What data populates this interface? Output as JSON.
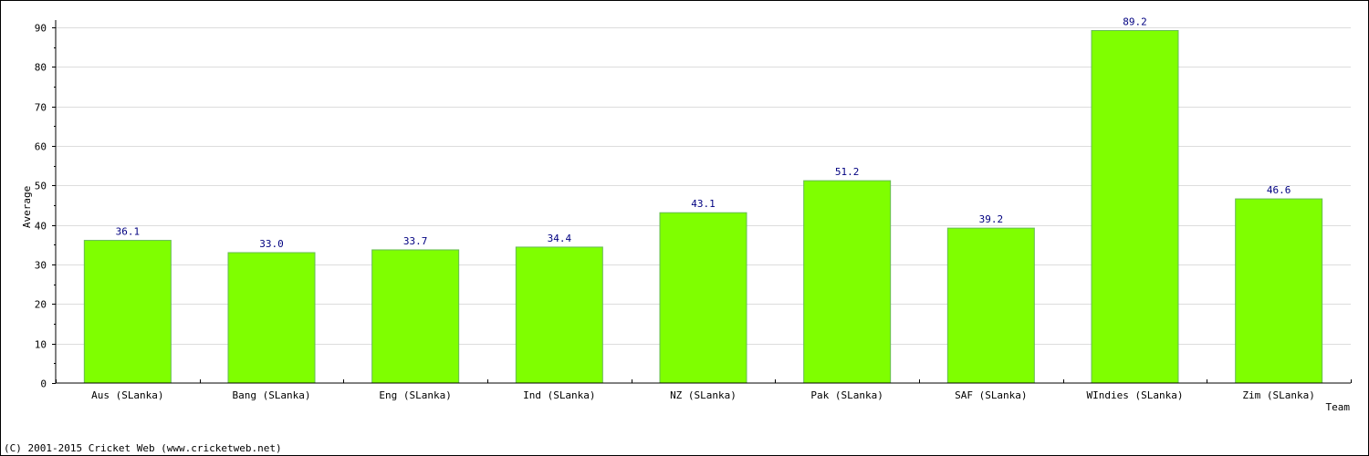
{
  "chart_data": {
    "type": "bar",
    "title": "",
    "xlabel": "Team",
    "ylabel": "Average",
    "categories": [
      "Aus (SLanka)",
      "Bang (SLanka)",
      "Eng (SLanka)",
      "Ind (SLanka)",
      "NZ (SLanka)",
      "Pak (SLanka)",
      "SAF (SLanka)",
      "WIndies (SLanka)",
      "Zim (SLanka)"
    ],
    "values": [
      36.1,
      33.0,
      33.7,
      34.4,
      43.1,
      51.2,
      39.2,
      89.2,
      46.6
    ],
    "value_labels": [
      "36.1",
      "33.0",
      "33.7",
      "34.4",
      "43.1",
      "51.2",
      "39.2",
      "89.2",
      "46.6"
    ],
    "ylim": [
      0,
      90
    ],
    "yticks": [
      0,
      10,
      20,
      30,
      40,
      50,
      60,
      70,
      80,
      90
    ],
    "grid": true,
    "legend": "none",
    "colors": {
      "bar_fill": "#7fff00",
      "bar_edge": "#66bb55",
      "grid": "#dddddd",
      "axis": "#000000",
      "value_label": "#000080"
    }
  },
  "footer": {
    "copyright": "(C) 2001-2015 Cricket Web (www.cricketweb.net)"
  }
}
